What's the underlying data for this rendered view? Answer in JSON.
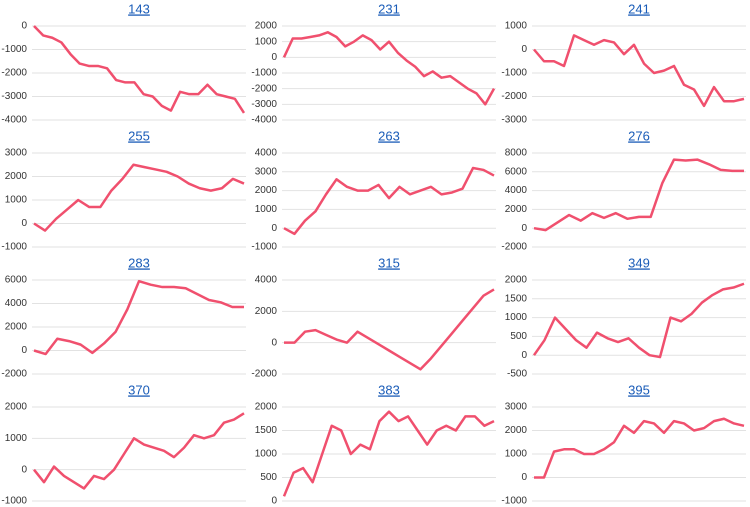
{
  "chart_data": [
    {
      "type": "line",
      "title": "143",
      "color": "#f0506e",
      "grid": true,
      "ylim": [
        -4000,
        0
      ],
      "yticks": [
        0,
        -1000,
        -2000,
        -3000,
        -4000
      ],
      "values": [
        0,
        -400,
        -500,
        -700,
        -1200,
        -1600,
        -1700,
        -1700,
        -1800,
        -2300,
        -2400,
        -2400,
        -2900,
        -3000,
        -3400,
        -3600,
        -2800,
        -2900,
        -2900,
        -2500,
        -2900,
        -3000,
        -3100,
        -3700
      ]
    },
    {
      "type": "line",
      "title": "231",
      "color": "#f0506e",
      "grid": true,
      "ylim": [
        -4000,
        2000
      ],
      "yticks": [
        2000,
        1000,
        0,
        -1000,
        -2000,
        -3000,
        -4000
      ],
      "values": [
        0,
        1200,
        1200,
        1300,
        1400,
        1600,
        1300,
        700,
        1000,
        1400,
        1100,
        500,
        1000,
        300,
        -200,
        -600,
        -1200,
        -900,
        -1300,
        -1200,
        -1600,
        -2000,
        -2300,
        -3000,
        -2000
      ]
    },
    {
      "type": "line",
      "title": "241",
      "color": "#f0506e",
      "grid": true,
      "ylim": [
        -3000,
        1000
      ],
      "yticks": [
        1000,
        0,
        -1000,
        -2000,
        -3000
      ],
      "values": [
        0,
        -500,
        -500,
        -700,
        600,
        400,
        200,
        400,
        300,
        -200,
        200,
        -600,
        -1000,
        -900,
        -700,
        -1500,
        -1700,
        -2400,
        -1600,
        -2200,
        -2200,
        -2100
      ]
    },
    {
      "type": "line",
      "title": "255",
      "color": "#f0506e",
      "grid": true,
      "ylim": [
        -1000,
        3000
      ],
      "yticks": [
        3000,
        2000,
        1000,
        0,
        -1000
      ],
      "values": [
        0,
        -300,
        200,
        600,
        1000,
        700,
        700,
        1400,
        1900,
        2500,
        2400,
        2300,
        2200,
        2000,
        1700,
        1500,
        1400,
        1500,
        1900,
        1700
      ]
    },
    {
      "type": "line",
      "title": "263",
      "color": "#f0506e",
      "grid": true,
      "ylim": [
        -1000,
        4000
      ],
      "yticks": [
        4000,
        3000,
        2000,
        1000,
        0,
        -1000
      ],
      "values": [
        0,
        -300,
        400,
        900,
        1800,
        2600,
        2200,
        2000,
        2000,
        2300,
        1600,
        2200,
        1800,
        2000,
        2200,
        1800,
        1900,
        2100,
        3200,
        3100,
        2800
      ]
    },
    {
      "type": "line",
      "title": "276",
      "color": "#f0506e",
      "grid": true,
      "ylim": [
        -2000,
        8000
      ],
      "yticks": [
        8000,
        6000,
        4000,
        2000,
        0,
        -2000
      ],
      "values": [
        0,
        -200,
        600,
        1400,
        800,
        1600,
        1100,
        1600,
        1000,
        1200,
        1200,
        4800,
        7300,
        7200,
        7300,
        6800,
        6200,
        6100,
        6100
      ]
    },
    {
      "type": "line",
      "title": "283",
      "color": "#f0506e",
      "grid": true,
      "ylim": [
        -2000,
        6000
      ],
      "yticks": [
        6000,
        4000,
        2000,
        0,
        -2000
      ],
      "values": [
        0,
        -300,
        1000,
        800,
        500,
        -200,
        600,
        1600,
        3500,
        5900,
        5600,
        5400,
        5400,
        5300,
        4800,
        4300,
        4100,
        3700,
        3700
      ]
    },
    {
      "type": "line",
      "title": "315",
      "color": "#f0506e",
      "grid": true,
      "ylim": [
        -2000,
        4000
      ],
      "yticks": [
        4000,
        2000,
        0,
        -2000
      ],
      "values": [
        0,
        0,
        700,
        800,
        500,
        200,
        0,
        700,
        300,
        -100,
        -500,
        -900,
        -1300,
        -1700,
        -1000,
        -200,
        600,
        1400,
        2200,
        3000,
        3400
      ]
    },
    {
      "type": "line",
      "title": "349",
      "color": "#f0506e",
      "grid": true,
      "ylim": [
        -500,
        2000
      ],
      "yticks": [
        2000,
        1500,
        1000,
        500,
        0,
        -500
      ],
      "values": [
        0,
        400,
        1000,
        700,
        400,
        200,
        600,
        450,
        350,
        450,
        200,
        0,
        -50,
        1000,
        900,
        1100,
        1400,
        1600,
        1750,
        1800,
        1900
      ]
    },
    {
      "type": "line",
      "title": "370",
      "color": "#f0506e",
      "grid": true,
      "ylim": [
        -1000,
        2000
      ],
      "yticks": [
        2000,
        1000,
        0,
        -1000
      ],
      "values": [
        0,
        -400,
        100,
        -200,
        -400,
        -600,
        -200,
        -300,
        0,
        500,
        1000,
        800,
        700,
        600,
        400,
        700,
        1100,
        1000,
        1100,
        1500,
        1600,
        1800
      ]
    },
    {
      "type": "line",
      "title": "383",
      "color": "#f0506e",
      "grid": true,
      "ylim": [
        0,
        2000
      ],
      "yticks": [
        2000,
        1500,
        1000,
        500,
        0
      ],
      "values": [
        100,
        600,
        700,
        400,
        1000,
        1600,
        1500,
        1000,
        1200,
        1100,
        1700,
        1900,
        1700,
        1800,
        1500,
        1200,
        1500,
        1600,
        1500,
        1800,
        1800,
        1600,
        1700
      ]
    },
    {
      "type": "line",
      "title": "395",
      "color": "#f0506e",
      "grid": true,
      "ylim": [
        -1000,
        3000
      ],
      "yticks": [
        3000,
        2000,
        1000,
        0,
        -1000
      ],
      "values": [
        0,
        0,
        1100,
        1200,
        1200,
        1000,
        1000,
        1200,
        1500,
        2200,
        1900,
        2400,
        2300,
        1900,
        2400,
        2300,
        2000,
        2100,
        2400,
        2500,
        2300,
        2200
      ]
    }
  ]
}
